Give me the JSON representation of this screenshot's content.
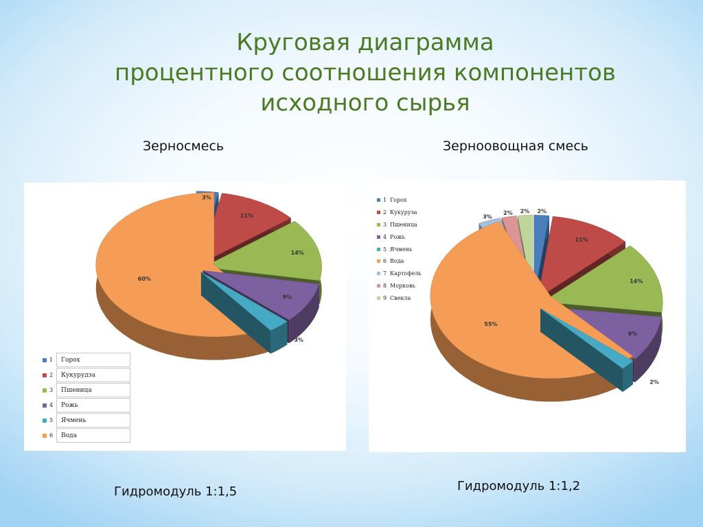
{
  "title_lines": [
    "Круговая диаграмма",
    "процентного соотношения компонентов",
    "исходного сырья"
  ],
  "chart_data": [
    {
      "type": "pie",
      "title": "Зерносмесь",
      "categories": [
        "Горох",
        "Кукурудза",
        "Пшеница",
        "Рожь",
        "Ячмень",
        "Вода"
      ],
      "values": [
        3,
        11,
        14,
        9,
        3,
        60
      ],
      "labels": [
        "3%",
        "11%",
        "14%",
        "9%",
        "3%",
        "60%"
      ],
      "legend_numbers": [
        "1",
        "2",
        "3",
        "4",
        "5",
        "6"
      ],
      "legend_position": "bottom-left",
      "note": "Гидромодуль 1:1,5"
    },
    {
      "type": "pie",
      "title": "Зерноовощная смесь",
      "categories": [
        "Горох",
        "Кукуруза",
        "Пшеница",
        "Рожь",
        "Ячмень",
        "Вода",
        "Картофель",
        "Морковь",
        "Свекла"
      ],
      "values": [
        2,
        11,
        14,
        9,
        2,
        55,
        3,
        2,
        2
      ],
      "labels": [
        "2%",
        "11%",
        "14%",
        "9%",
        "2%",
        "55%",
        "3%",
        "2%",
        "2%"
      ],
      "legend_numbers": [
        "1",
        "2",
        "3",
        "4",
        "5",
        "6",
        "7",
        "8",
        "9"
      ],
      "legend_position": "top-left",
      "note": "Гидромодуль 1:1,2"
    }
  ],
  "colors": [
    "#4a7ebb",
    "#be4b48",
    "#98b954",
    "#7d60a0",
    "#46aac5",
    "#f59d56",
    "#a5bee0",
    "#d99694",
    "#bfd59b"
  ],
  "title_color": "#4a7a24"
}
